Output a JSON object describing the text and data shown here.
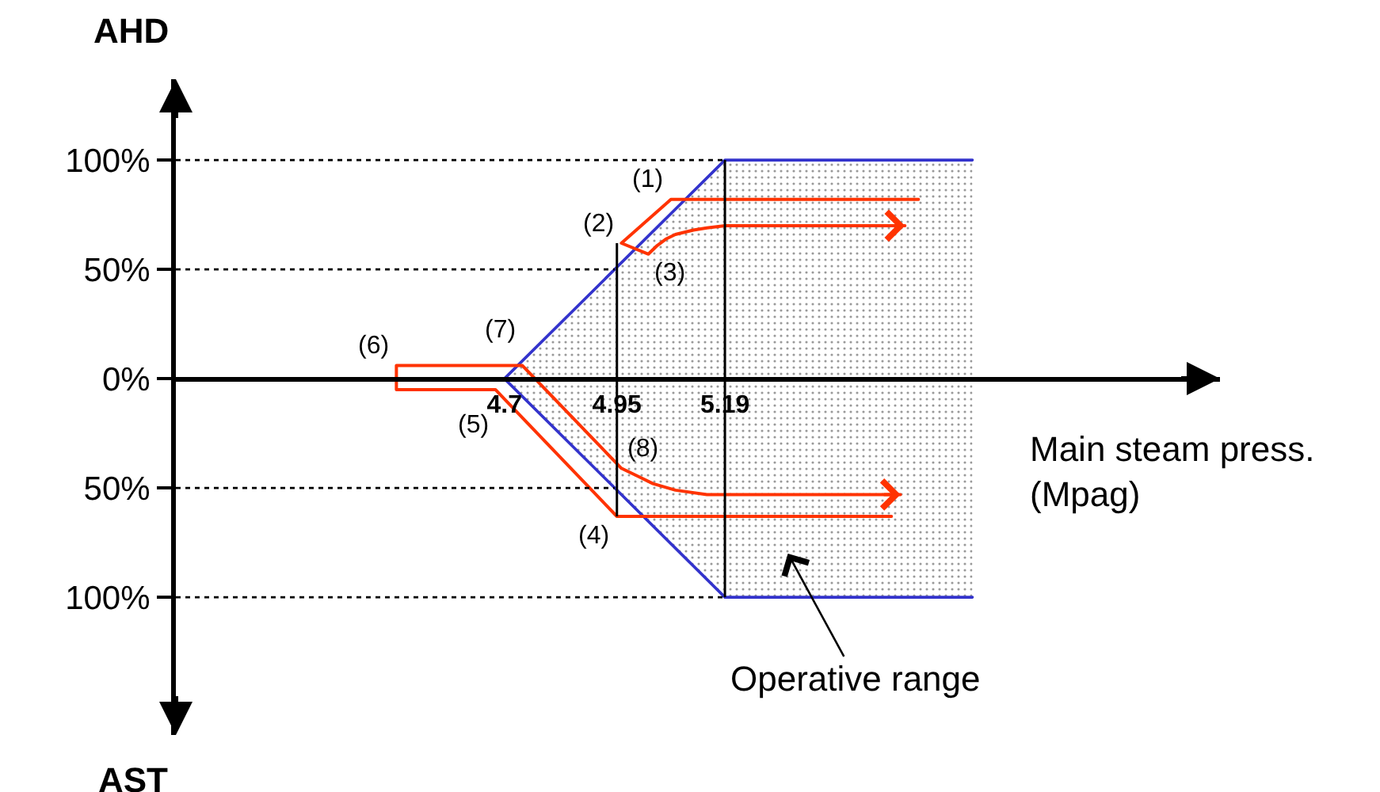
{
  "chart_data": {
    "type": "line",
    "ylabel": "AHD",
    "xlabel": "Main steam press.\n(Mpag)",
    "xlim": [
      3.97,
      6.29
    ],
    "xticks": [
      4.7,
      4.95,
      5.19
    ],
    "ylim": [
      -163,
      137
    ],
    "yticks": [
      {
        "value": -100,
        "label": "100%"
      },
      {
        "value": -50,
        "label": "50%"
      },
      {
        "value": 0,
        "label": "0%"
      },
      {
        "value": 50,
        "label": "50%"
      },
      {
        "value": 100,
        "label": "100%"
      }
    ],
    "series": [
      {
        "type": "area",
        "color": "#3333cc",
        "x": [
          4.7,
          5.19,
          5.74
        ],
        "values": [
          0,
          100,
          100
        ]
      },
      {
        "type": "area",
        "color": "#3333cc",
        "x": [
          4.7,
          5.19,
          5.74
        ],
        "values": [
          0,
          -100,
          -100
        ]
      },
      {
        "color": "#ff3300",
        "x": [
          5.62,
          5.07,
          4.96,
          5.02,
          5.04,
          5.06,
          5.08,
          5.12,
          5.15,
          5.19,
          5.59
        ],
        "values": [
          82,
          82,
          62,
          57,
          61,
          64,
          66,
          68,
          69,
          70,
          70
        ]
      },
      {
        "color": "#ff3300",
        "x": [
          5.56,
          4.95,
          4.68,
          4.46,
          4.46,
          4.74,
          4.96,
          5.0,
          5.03,
          5.08,
          5.15,
          5.58
        ],
        "values": [
          -63,
          -63,
          -5,
          -5,
          6,
          6,
          -41,
          -45,
          -48,
          -51,
          -53,
          -53
        ]
      }
    ],
    "ref_lines": [
      {
        "axis": "x",
        "value": 4.95,
        "color": "#000000",
        "line_style": "solid"
      },
      {
        "axis": "x",
        "value": 5.19,
        "color": "#000000",
        "line_style": "solid"
      },
      {
        "axis": "y",
        "value": 100,
        "color": "#000000",
        "line_style": "dotted"
      },
      {
        "axis": "y",
        "value": 50,
        "color": "#000000",
        "line_style": "dotted"
      },
      {
        "axis": "y",
        "value": -50,
        "color": "#000000",
        "line_style": "dotted"
      },
      {
        "axis": "y",
        "value": -100,
        "color": "#000000",
        "line_style": "dotted"
      }
    ],
    "annotations": [
      "AST",
      "Operative range",
      {
        "text": "(1)",
        "x": 5.07,
        "y": 82
      },
      {
        "text": "(2)",
        "x": 4.96,
        "y": 62
      },
      {
        "text": "(3)",
        "x": 5.02,
        "y": 57
      },
      {
        "text": "(4)",
        "x": 4.95,
        "y": -63
      },
      {
        "text": "(5)",
        "x": 4.68,
        "y": -5
      },
      {
        "text": "(6)",
        "x": 4.46,
        "y": 6
      },
      {
        "text": "(7)",
        "x": 4.74,
        "y": 6
      },
      {
        "text": "(8)",
        "x": 4.96,
        "y": -41
      }
    ]
  }
}
